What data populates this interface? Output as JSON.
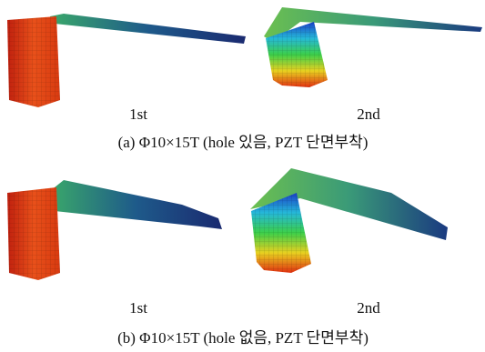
{
  "figure": {
    "panels": [
      {
        "labels": [
          "1st",
          "2nd"
        ],
        "caption": "(a)  Φ10×15T  (hole  있음,  PZT  단면부착)"
      },
      {
        "labels": [
          "1st",
          "2nd"
        ],
        "caption": "(b)  Φ10×15T  (hole  없음,  PZT  단면부착)"
      }
    ]
  }
}
